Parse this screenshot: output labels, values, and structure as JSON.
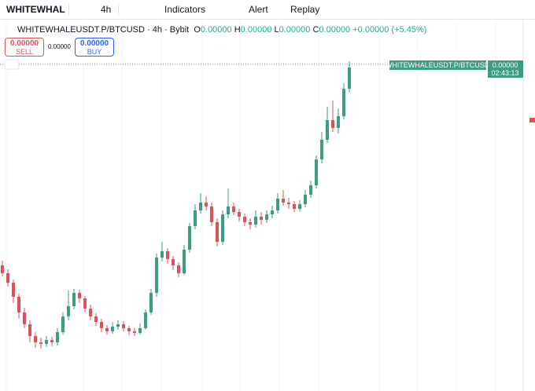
{
  "toolbar": {
    "symbol": "WHITEWHAL",
    "interval": "4h",
    "indicators": "Indicators",
    "alert": "Alert",
    "replay": "Replay"
  },
  "legend": {
    "title": "WHITEWHALEUSDT.P/BTCUSD · 4h · Bybit",
    "o_label": "O",
    "o": "0.00000",
    "h_label": "H",
    "h": "0.00000",
    "l_label": "L",
    "l": "0.00000",
    "c_label": "C",
    "c": "0.00000",
    "change": "+0.00000 (+5.45%)"
  },
  "trade": {
    "sell_price": "0.00000",
    "sell": "SELL",
    "spread": "0.00000",
    "buy_price": "0.00000",
    "buy": "BUY"
  },
  "price_tag": {
    "symbol": "WHITEWHALEUSDT.P/BTCUSD",
    "price": "0.00000",
    "countdown": "02:43:13"
  },
  "chart_data": {
    "type": "candlestick",
    "ylim": [
      0,
      471
    ],
    "up_color": "#3d9c82",
    "down_color": "#df5158",
    "ohlc": [
      [
        160,
        166,
        146,
        150
      ],
      [
        150,
        155,
        133,
        138
      ],
      [
        138,
        142,
        112,
        120
      ],
      [
        120,
        124,
        92,
        100
      ],
      [
        100,
        106,
        80,
        85
      ],
      [
        85,
        90,
        62,
        70
      ],
      [
        70,
        75,
        55,
        62
      ],
      [
        62,
        68,
        54,
        60
      ],
      [
        60,
        70,
        56,
        65
      ],
      [
        65,
        69,
        57,
        62
      ],
      [
        62,
        80,
        58,
        75
      ],
      [
        75,
        100,
        72,
        95
      ],
      [
        95,
        128,
        90,
        108
      ],
      [
        108,
        130,
        104,
        125
      ],
      [
        125,
        129,
        112,
        118
      ],
      [
        118,
        121,
        100,
        105
      ],
      [
        105,
        110,
        90,
        95
      ],
      [
        95,
        99,
        83,
        88
      ],
      [
        88,
        92,
        75,
        80
      ],
      [
        80,
        84,
        72,
        76
      ],
      [
        76,
        88,
        73,
        82
      ],
      [
        82,
        90,
        78,
        85
      ],
      [
        85,
        89,
        76,
        80
      ],
      [
        80,
        83,
        71,
        76
      ],
      [
        76,
        80,
        70,
        74
      ],
      [
        74,
        86,
        72,
        80
      ],
      [
        80,
        104,
        78,
        100
      ],
      [
        100,
        130,
        97,
        125
      ],
      [
        125,
        175,
        120,
        170
      ],
      [
        170,
        190,
        165,
        178
      ],
      [
        178,
        182,
        162,
        168
      ],
      [
        168,
        172,
        154,
        160
      ],
      [
        160,
        164,
        145,
        150
      ],
      [
        150,
        186,
        148,
        180
      ],
      [
        180,
        214,
        176,
        210
      ],
      [
        210,
        238,
        206,
        230
      ],
      [
        230,
        252,
        226,
        240
      ],
      [
        240,
        248,
        230,
        235
      ],
      [
        235,
        240,
        210,
        215
      ],
      [
        215,
        220,
        184,
        190
      ],
      [
        190,
        230,
        186,
        225
      ],
      [
        225,
        258,
        220,
        235
      ],
      [
        235,
        240,
        224,
        228
      ],
      [
        228,
        232,
        216,
        222
      ],
      [
        222,
        226,
        210,
        215
      ],
      [
        215,
        220,
        206,
        212
      ],
      [
        212,
        230,
        208,
        222
      ],
      [
        222,
        228,
        212,
        218
      ],
      [
        218,
        230,
        214,
        225
      ],
      [
        225,
        236,
        220,
        230
      ],
      [
        230,
        252,
        226,
        245
      ],
      [
        245,
        256,
        236,
        240
      ],
      [
        240,
        246,
        232,
        238
      ],
      [
        238,
        242,
        228,
        232
      ],
      [
        232,
        243,
        229,
        238
      ],
      [
        238,
        256,
        234,
        250
      ],
      [
        250,
        268,
        246,
        262
      ],
      [
        262,
        300,
        258,
        295
      ],
      [
        295,
        330,
        290,
        320
      ],
      [
        320,
        362,
        316,
        345
      ],
      [
        345,
        370,
        330,
        335
      ],
      [
        335,
        360,
        328,
        350
      ],
      [
        350,
        392,
        346,
        385
      ],
      [
        385,
        420,
        380,
        412
      ]
    ]
  }
}
